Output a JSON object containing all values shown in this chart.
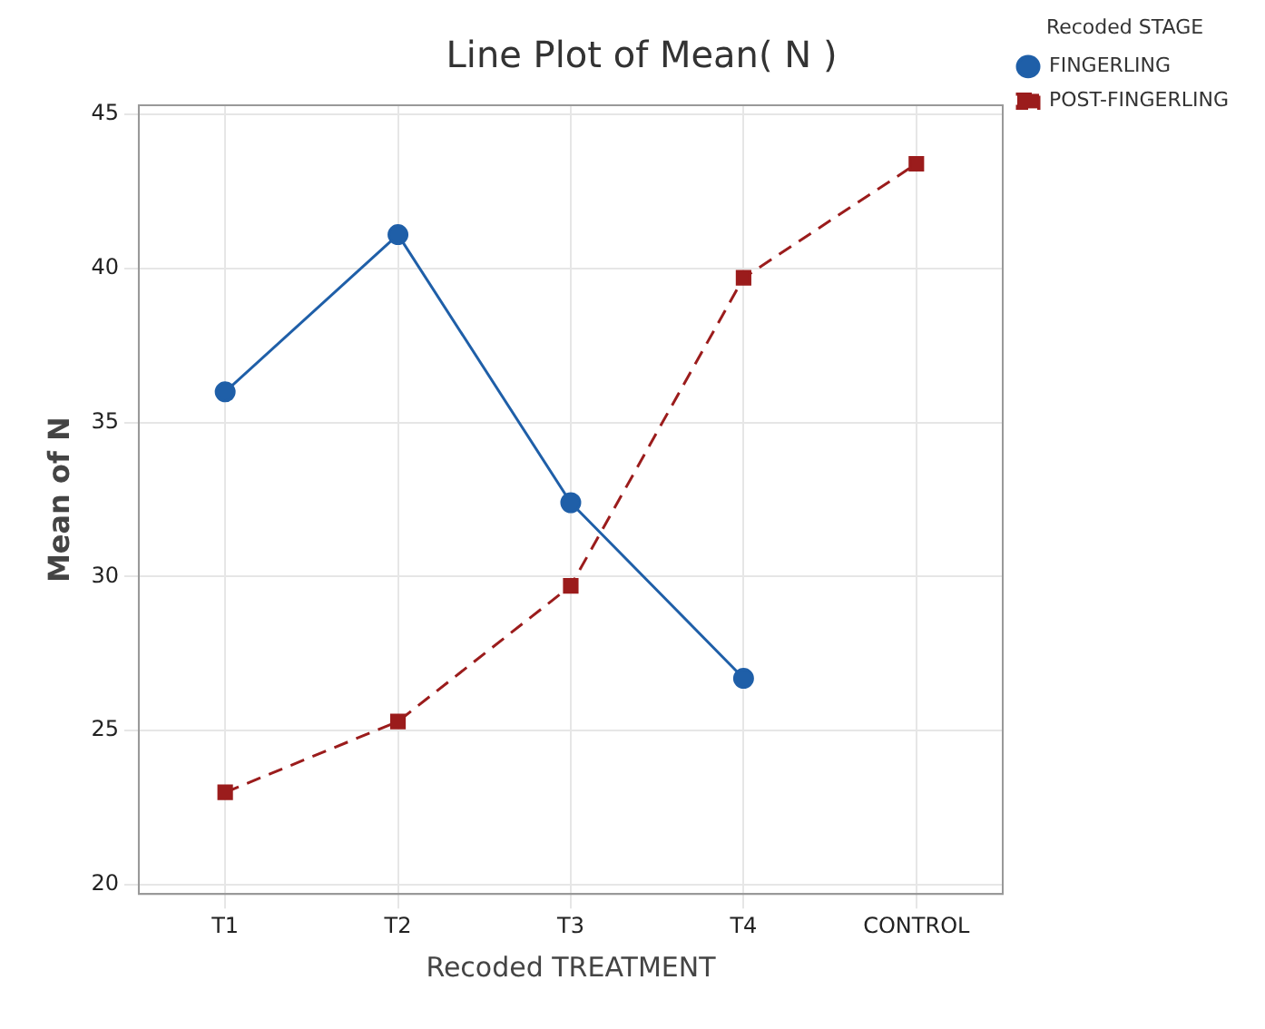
{
  "chart_data": {
    "type": "line",
    "title": "Line Plot of Mean( N )",
    "xlabel": "Recoded TREATMENT",
    "ylabel": "Mean of N",
    "legend_title": "Recoded STAGE",
    "categories": [
      "T1",
      "T2",
      "T3",
      "T4",
      "CONTROL"
    ],
    "series": [
      {
        "name": "FINGERLING",
        "color": "#1f5fa8",
        "values": [
          36.0,
          41.1,
          32.4,
          26.7,
          null
        ],
        "marker": "circle",
        "line_style": "solid"
      },
      {
        "name": "POST-FINGERLING",
        "color": "#9b1c1c",
        "values": [
          23.0,
          25.3,
          29.7,
          39.7,
          43.4
        ],
        "marker": "square",
        "line_style": "dashed"
      }
    ],
    "ylim": [
      19.7,
      45.3
    ],
    "yticks": [
      20,
      25,
      30,
      35,
      40,
      45
    ],
    "grid": true,
    "legend": "top right"
  }
}
